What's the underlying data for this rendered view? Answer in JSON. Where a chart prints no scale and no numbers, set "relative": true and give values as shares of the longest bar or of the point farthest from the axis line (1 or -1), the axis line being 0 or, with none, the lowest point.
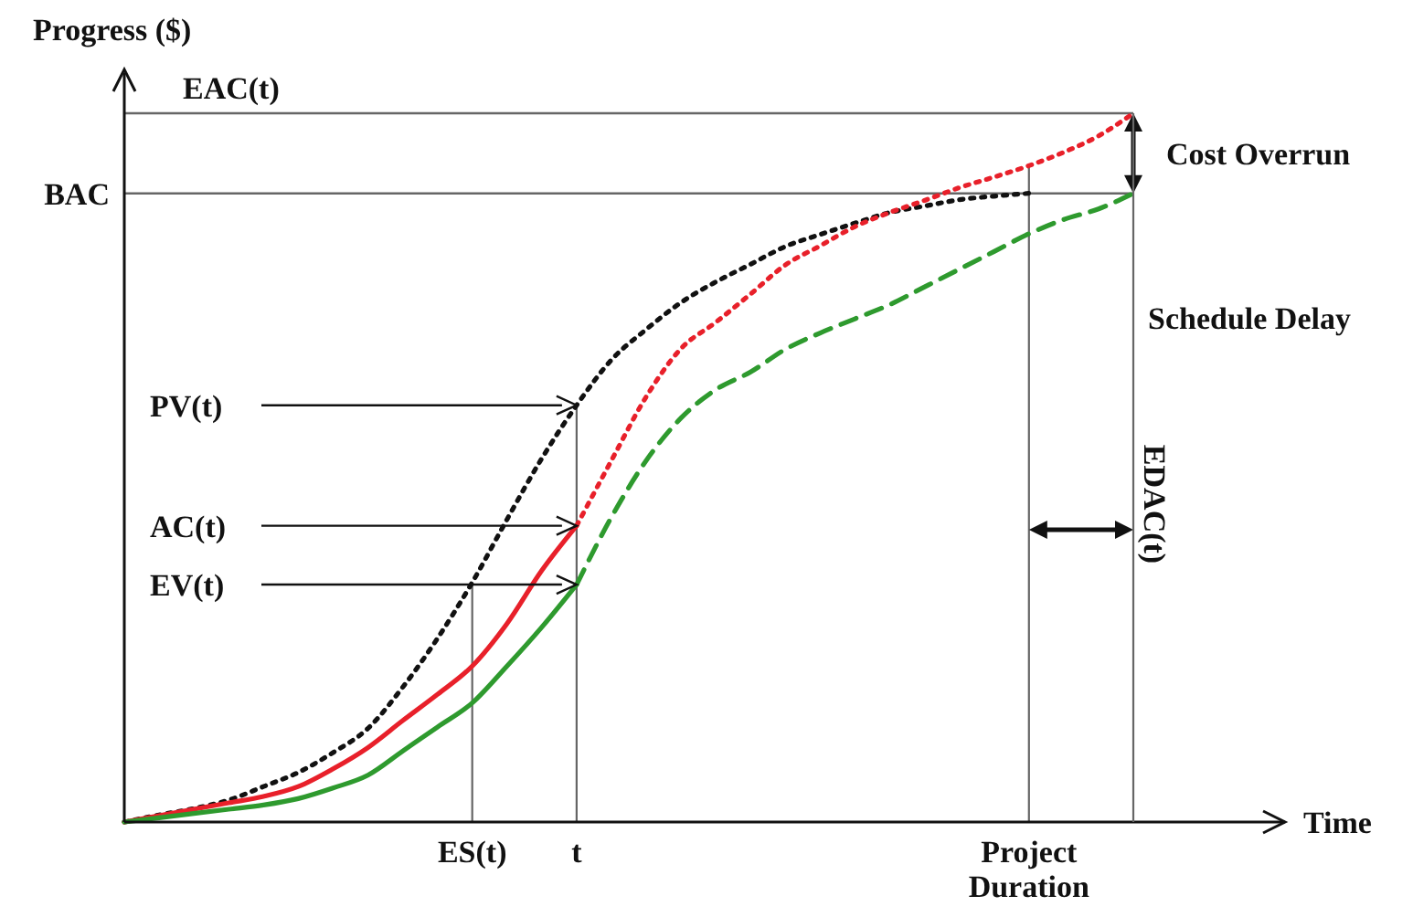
{
  "chart_data": {
    "type": "line",
    "relative": true,
    "ylabel": "Progress ($)",
    "categories": [
      null,
      null,
      null,
      null,
      null,
      null,
      null,
      null,
      null,
      null,
      "ES(t)",
      null,
      null,
      "t",
      null,
      null,
      null,
      null,
      null,
      null,
      null,
      null,
      null,
      null,
      null,
      null,
      "Project Duration",
      null,
      null,
      null
    ],
    "series": [
      {
        "color": "#111111",
        "line_style": "dotted",
        "values": [
          0,
          0.01,
          0.019,
          0.031,
          0.05,
          0.07,
          0.098,
          0.132,
          0.19,
          0.259,
          0.338,
          0.427,
          0.513,
          0.588,
          0.652,
          0.695,
          0.733,
          0.762,
          0.787,
          0.812,
          0.829,
          0.845,
          0.86,
          0.869,
          0.878,
          0.883,
          0.887,
          null,
          null,
          null
        ]
      },
      {
        "color": "#e8202a",
        "line_style": "solid",
        "values": [
          0,
          0.009,
          0.018,
          0.027,
          0.036,
          0.05,
          0.075,
          0.105,
          0.143,
          0.18,
          0.22,
          0.28,
          0.355,
          0.418,
          null,
          null,
          null,
          null,
          null,
          null,
          null,
          null,
          null,
          null,
          null,
          null,
          null,
          null,
          null,
          null
        ]
      },
      {
        "color": "#e8202a",
        "line_style": "dotted",
        "values": [
          null,
          null,
          null,
          null,
          null,
          null,
          null,
          null,
          null,
          null,
          null,
          null,
          null,
          0.418,
          0.51,
          0.6,
          0.668,
          0.705,
          0.745,
          0.786,
          0.813,
          0.84,
          0.86,
          0.877,
          0.895,
          0.91,
          0.926,
          0.945,
          0.968,
          1
        ]
      },
      {
        "color": "#2e9a2e",
        "line_style": "solid",
        "values": [
          0,
          0.006,
          0.012,
          0.018,
          0.024,
          0.033,
          0.048,
          0.066,
          0.1,
          0.134,
          0.168,
          0.22,
          0.275,
          0.335,
          null,
          null,
          null,
          null,
          null,
          null,
          null,
          null,
          null,
          null,
          null,
          null,
          null,
          null,
          null,
          null
        ]
      },
      {
        "color": "#2e9a2e",
        "line_style": "dashed",
        "values": [
          null,
          null,
          null,
          null,
          null,
          null,
          null,
          null,
          null,
          null,
          null,
          null,
          null,
          0.335,
          0.43,
          0.51,
          0.57,
          0.61,
          0.635,
          0.667,
          0.69,
          0.71,
          0.73,
          0.755,
          0.78,
          0.805,
          0.83,
          0.85,
          0.865,
          0.887
        ]
      }
    ],
    "ref_lines": [
      {
        "axis": "y",
        "value": 1,
        "label": "EAC(t)"
      },
      {
        "axis": "y",
        "value": 0.887,
        "label": "BAC"
      },
      {
        "axis": "x",
        "value": "ES(t)"
      },
      {
        "axis": "x",
        "value": "t"
      },
      {
        "axis": "x",
        "value": "Project Duration"
      }
    ],
    "annotations": [
      {
        "text": "PV(t)",
        "x": "t",
        "y": 0.588
      },
      {
        "text": "AC(t)",
        "x": "t",
        "y": 0.418
      },
      {
        "text": "EV(t)",
        "x": "t",
        "y": 0.335
      },
      "Cost Overrun",
      "Schedule Delay",
      "EDAC(t)",
      "Time"
    ]
  }
}
